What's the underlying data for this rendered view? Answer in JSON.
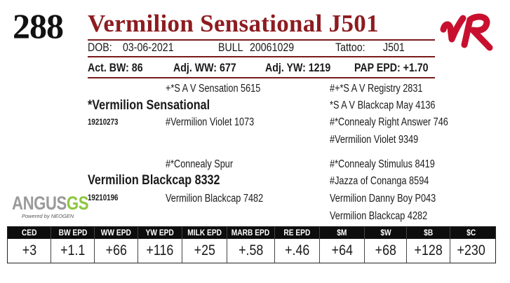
{
  "lot_number": "288",
  "title": "Vermilion Sensational J501",
  "brand_text": "VR",
  "colors": {
    "title": "#8d1c20",
    "brand": "#c8102e",
    "header_bg": "#0d0d0d",
    "logo_gray": "#9a9a9a",
    "logo_green": "#8cc63f"
  },
  "info": {
    "dob_label": "DOB:",
    "dob": "03-06-2021",
    "sex_label": "BULL",
    "reg": "20061029",
    "tattoo_label": "Tattoo:",
    "tattoo": "J501"
  },
  "stats": {
    "bw": "Act. BW: 86",
    "ww": "Adj. WW: 677",
    "yw": "Adj. YW: 1219",
    "pap": "PAP EPD: +1.70"
  },
  "pedigree": {
    "sire": "*Vermilion Sensational",
    "sire_reg": "19210273",
    "sire_sire": "+*S A V Sensation 5615",
    "sire_dam": "#Vermilion Violet 1073",
    "ss_sire": "#+*S A V Registry 2831",
    "ss_dam": "*S A V Blackcap May 4136",
    "sd_sire": "#*Connealy Right Answer 746",
    "sd_dam": "#Vermilion Violet 9349",
    "dam": "Vermilion Blackcap 8332",
    "dam_reg": "19210196",
    "dam_sire": "#*Connealy Spur",
    "dam_dam": "Vermilion Blackcap 7482",
    "ds_sire": "#*Connealy Stimulus 8419",
    "ds_dam": "#Jazza of Conanga 8594",
    "dd_sire": "Vermilion Danny Boy P043",
    "dd_dam": "Vermilion Blackcap 4282"
  },
  "logo": {
    "main": "ANGUS",
    "gs": "GS",
    "sub": "Powered by NEOGEN"
  },
  "epds": {
    "headers": [
      "CED",
      "BW EPD",
      "WW EPD",
      "YW EPD",
      "MILK EPD",
      "MARB EPD",
      "RE EPD",
      "$M",
      "$W",
      "$B",
      "$C"
    ],
    "values": [
      "+3",
      "+1.1",
      "+66",
      "+116",
      "+25",
      "+.58",
      "+.46",
      "+64",
      "+68",
      "+128",
      "+230"
    ]
  }
}
